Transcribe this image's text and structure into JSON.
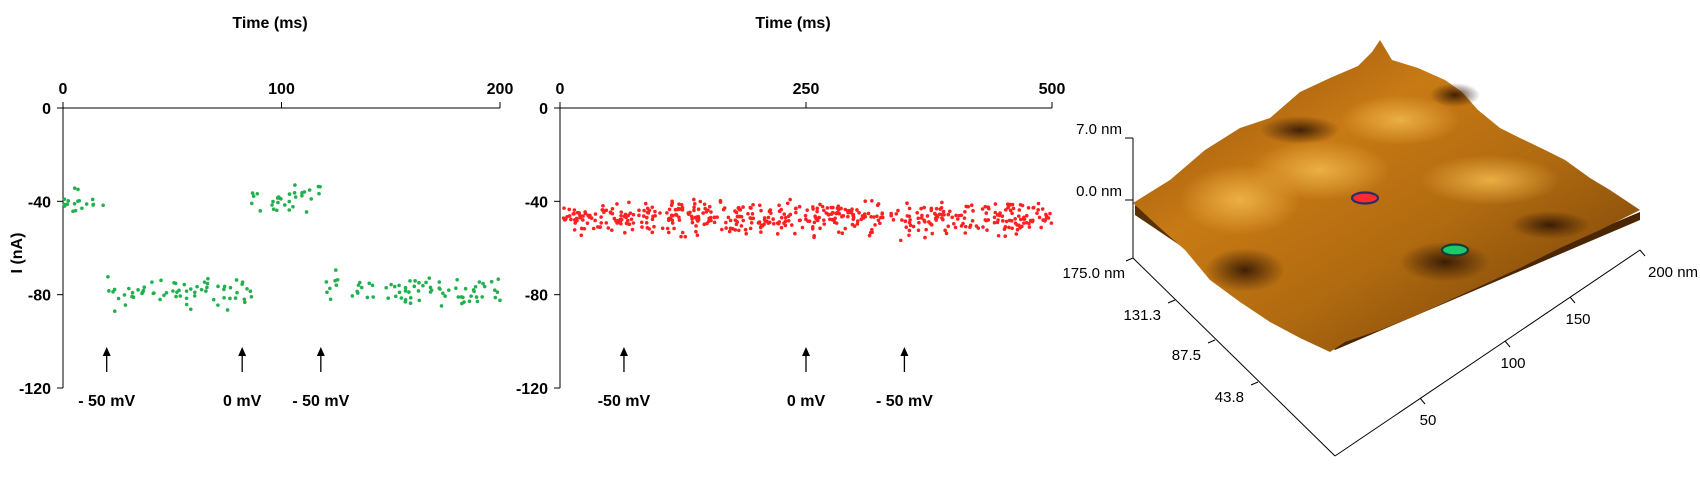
{
  "chart_data": [
    {
      "type": "scatter",
      "panel": "left",
      "xlabel": "Time  (ms)",
      "ylabel": "I  (nA)",
      "xlim": [
        0,
        200
      ],
      "ylim": [
        -120,
        0
      ],
      "x_axis_position": "top",
      "x_ticks": [
        "0",
        "100",
        "200"
      ],
      "y_ticks": [
        "0",
        "-40",
        "-80",
        "-120"
      ],
      "point_color": "#22b04f",
      "segments": [
        {
          "t_start": 0,
          "t_end": 19,
          "mean": -40,
          "spread": 8
        },
        {
          "t_start": 19,
          "t_end": 87,
          "mean": -79,
          "spread": 9
        },
        {
          "t_start": 86,
          "t_end": 119,
          "mean": -39,
          "spread": 9
        },
        {
          "t_start": 119,
          "t_end": 200,
          "mean": -79,
          "spread": 10
        }
      ],
      "annotations": [
        {
          "text": "- 50 mV",
          "t": 20
        },
        {
          "text": "0 mV",
          "t": 82
        },
        {
          "text": "- 50 mV",
          "t": 118
        }
      ]
    },
    {
      "type": "scatter",
      "panel": "middle",
      "xlabel": "Time  (ms)",
      "ylabel": "",
      "xlim": [
        0,
        500
      ],
      "ylim": [
        -120,
        0
      ],
      "x_axis_position": "top",
      "x_ticks": [
        "0",
        "250",
        "500"
      ],
      "y_ticks": [
        "0",
        "-40",
        "-80",
        "-120"
      ],
      "point_color": "#ff2020",
      "segments": [
        {
          "t_start": 0,
          "t_end": 500,
          "mean": -47,
          "spread": 10
        }
      ],
      "annotations": [
        {
          "text": "-50 mV",
          "t": 65
        },
        {
          "text": "0 mV",
          "t": 250
        },
        {
          "text": "- 50 mV",
          "t": 350
        }
      ]
    },
    {
      "type": "surface",
      "panel": "right",
      "z_labels": [
        "7.0 nm",
        "0.0 nm"
      ],
      "y_labels": [
        "175.0 nm",
        "131.3",
        "87.5",
        "43.8"
      ],
      "x_labels": [
        "50",
        "100",
        "150",
        "200 nm"
      ],
      "colormap": [
        "#3a1a05",
        "#8a4a0c",
        "#c87a14",
        "#e8a83a"
      ],
      "markers": [
        {
          "fill": "#ff2a2a",
          "outline": "#2b2b6b"
        },
        {
          "fill": "#1fc76a",
          "outline": "#1a3a3a"
        }
      ]
    }
  ]
}
